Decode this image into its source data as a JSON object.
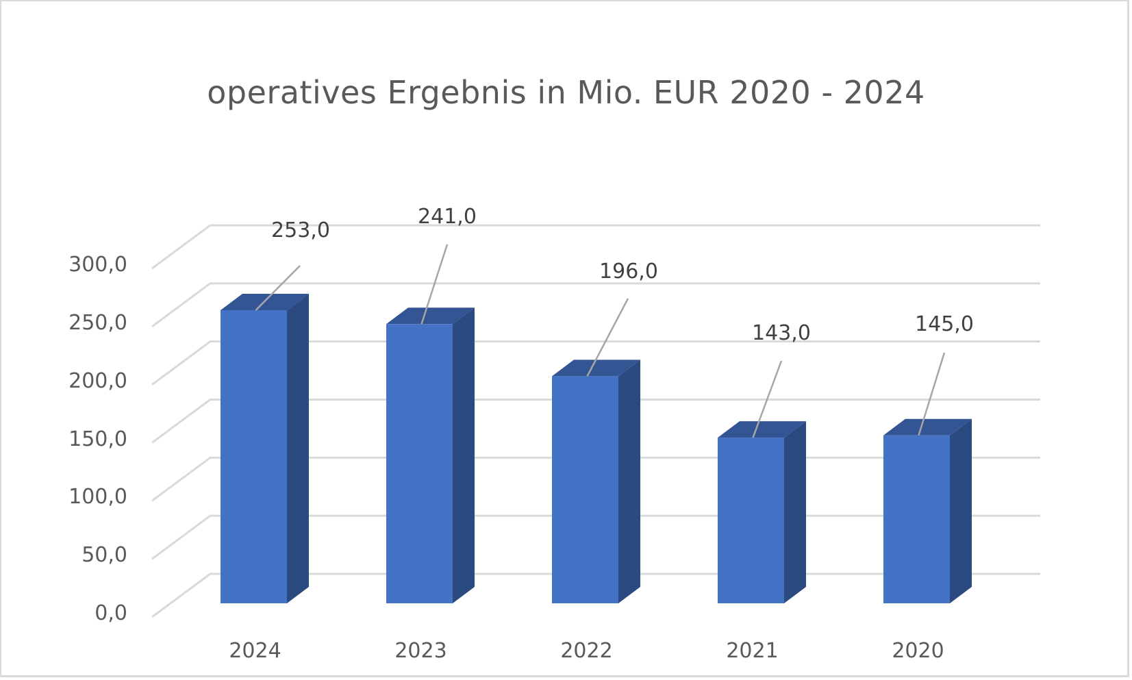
{
  "chart": {
    "title": "operatives Ergebnis in Mio. EUR 2020 - 2024",
    "colors": {
      "bar_front": "#4472c4",
      "bar_top": "#335594",
      "bar_side": "#2a4a80",
      "grid": "#d9d9d9",
      "leader_line": "#a6a6a6",
      "text": "#595959",
      "label_text": "#404040"
    },
    "y_ticks": [
      "0,0",
      "50,0",
      "100,0",
      "150,0",
      "200,0",
      "250,0",
      "300,0"
    ],
    "x_ticks": [
      "2024",
      "2023",
      "2022",
      "2021",
      "2020"
    ],
    "data_labels": [
      "253,0",
      "241,0",
      "196,0",
      "143,0",
      "145,0"
    ]
  },
  "chart_data": {
    "type": "bar",
    "style": "3d-clustered-column",
    "title": "operatives Ergebnis in Mio. EUR 2020 - 2024",
    "categories": [
      "2024",
      "2023",
      "2022",
      "2021",
      "2020"
    ],
    "values": [
      253.0,
      241.0,
      196.0,
      143.0,
      145.0
    ],
    "data_labels": [
      "253,0",
      "241,0",
      "196,0",
      "143,0",
      "145,0"
    ],
    "xlabel": "",
    "ylabel": "",
    "ylim": [
      0,
      300
    ],
    "y_ticks": [
      0,
      50,
      100,
      150,
      200,
      250,
      300
    ],
    "y_tick_labels": [
      "0,0",
      "50,0",
      "100,0",
      "150,0",
      "200,0",
      "250,0",
      "300,0"
    ],
    "grid": true,
    "legend": "none",
    "bar_color": "#4472c4"
  }
}
